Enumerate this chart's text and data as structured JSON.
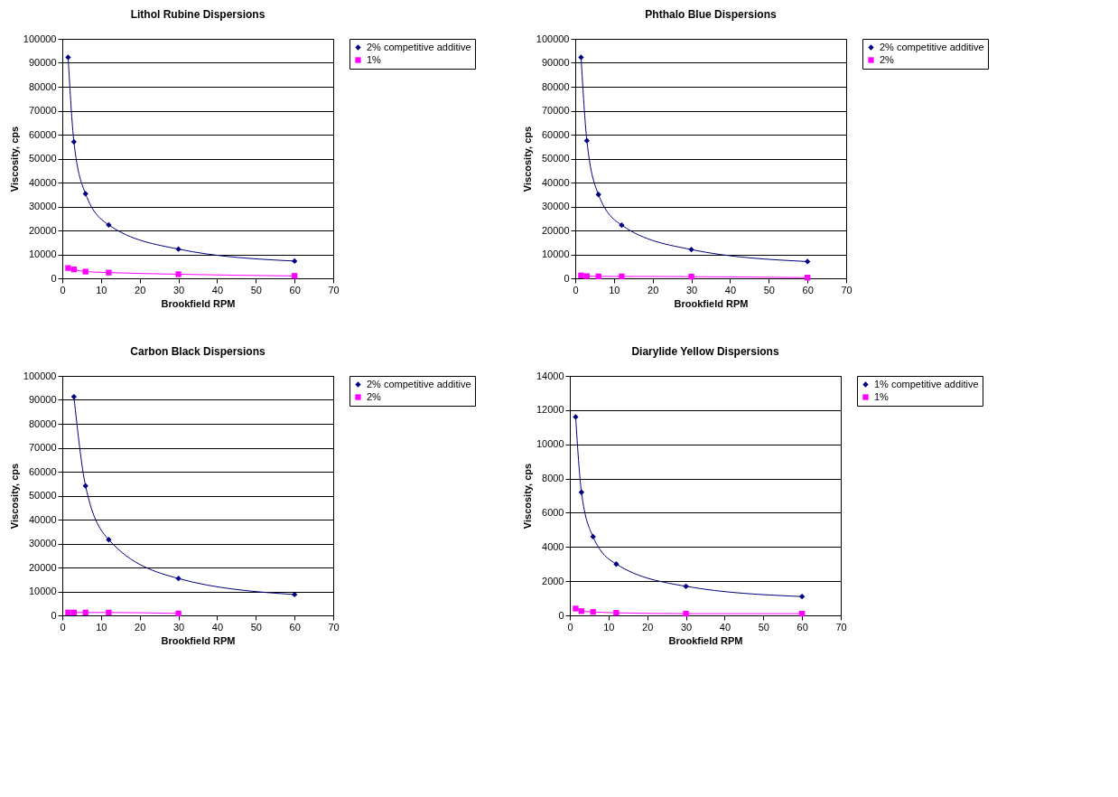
{
  "chart_data": [
    {
      "type": "line",
      "title": "Lithol Rubine Dispersions",
      "xlabel": "Brookfield RPM",
      "ylabel": "Viscosity, cps",
      "xlim": [
        0,
        70
      ],
      "xticks": [
        0,
        10,
        20,
        30,
        40,
        50,
        60,
        70
      ],
      "ylim": [
        0,
        100000
      ],
      "yticks": [
        0,
        10000,
        20000,
        30000,
        40000,
        50000,
        60000,
        70000,
        80000,
        90000,
        100000
      ],
      "grid": "y",
      "legend": "right",
      "series": [
        {
          "name": "2% competitive additive",
          "color": "#000080",
          "marker": "diamond",
          "x": [
            1.5,
            3,
            6,
            12,
            30,
            60
          ],
          "values": [
            92300,
            57000,
            35300,
            22300,
            12200,
            7200
          ]
        },
        {
          "name": "1%",
          "color": "#ff00ff",
          "marker": "square",
          "x": [
            1.5,
            3,
            6,
            12,
            30,
            60
          ],
          "values": [
            4300,
            3700,
            2800,
            2400,
            1700,
            1000
          ]
        }
      ]
    },
    {
      "type": "line",
      "title": "Phthalo Blue Dispersions",
      "xlabel": "Brookfield RPM",
      "ylabel": "Viscosity, cps",
      "xlim": [
        0,
        70
      ],
      "xticks": [
        0,
        10,
        20,
        30,
        40,
        50,
        60,
        70
      ],
      "ylim": [
        0,
        100000
      ],
      "yticks": [
        0,
        10000,
        20000,
        30000,
        40000,
        50000,
        60000,
        70000,
        80000,
        90000,
        100000
      ],
      "grid": "y",
      "legend": "right",
      "series": [
        {
          "name": "2% competitive additive",
          "color": "#000080",
          "marker": "diamond",
          "x": [
            1.5,
            3,
            6,
            12,
            30,
            60
          ],
          "values": [
            92300,
            57500,
            35000,
            22200,
            12000,
            7000
          ]
        },
        {
          "name": "2%",
          "color": "#ff00ff",
          "marker": "square",
          "x": [
            1.5,
            3,
            6,
            12,
            30,
            60
          ],
          "values": [
            1200,
            900,
            800,
            800,
            700,
            300
          ]
        }
      ]
    },
    {
      "type": "line",
      "title": "Carbon Black Dispersions",
      "xlabel": "Brookfield RPM",
      "ylabel": "Viscosity, cps",
      "xlim": [
        0,
        70
      ],
      "xticks": [
        0,
        10,
        20,
        30,
        40,
        50,
        60,
        70
      ],
      "ylim": [
        0,
        100000
      ],
      "yticks": [
        0,
        10000,
        20000,
        30000,
        40000,
        50000,
        60000,
        70000,
        80000,
        90000,
        100000
      ],
      "grid": "y",
      "legend": "right",
      "series": [
        {
          "name": "2% competitive additive",
          "color": "#000080",
          "marker": "diamond",
          "x": [
            3,
            6,
            12,
            30,
            60
          ],
          "values": [
            91300,
            54100,
            31600,
            15400,
            8700
          ]
        },
        {
          "name": "2%",
          "color": "#ff00ff",
          "marker": "square",
          "x": [
            1.5,
            3,
            6,
            12,
            30
          ],
          "values": [
            1200,
            1200,
            1200,
            1200,
            800
          ]
        }
      ]
    },
    {
      "type": "line",
      "title": "Diarylide Yellow Dispersions",
      "xlabel": "Brookfield RPM",
      "ylabel": "Viscosity, cps",
      "xlim": [
        0,
        70
      ],
      "xticks": [
        0,
        10,
        20,
        30,
        40,
        50,
        60,
        70
      ],
      "ylim": [
        0,
        14000
      ],
      "yticks": [
        0,
        2000,
        4000,
        6000,
        8000,
        10000,
        12000,
        14000
      ],
      "grid": "y",
      "legend": "right",
      "series": [
        {
          "name": "1% competitive additive",
          "color": "#000080",
          "marker": "diamond",
          "x": [
            1.5,
            3,
            6,
            12,
            30,
            60
          ],
          "values": [
            11600,
            7200,
            4600,
            3000,
            1700,
            1100
          ]
        },
        {
          "name": "1%",
          "color": "#ff00ff",
          "marker": "square",
          "x": [
            1.5,
            3,
            6,
            12,
            30,
            60
          ],
          "values": [
            400,
            250,
            200,
            150,
            100,
            100
          ]
        }
      ]
    }
  ]
}
